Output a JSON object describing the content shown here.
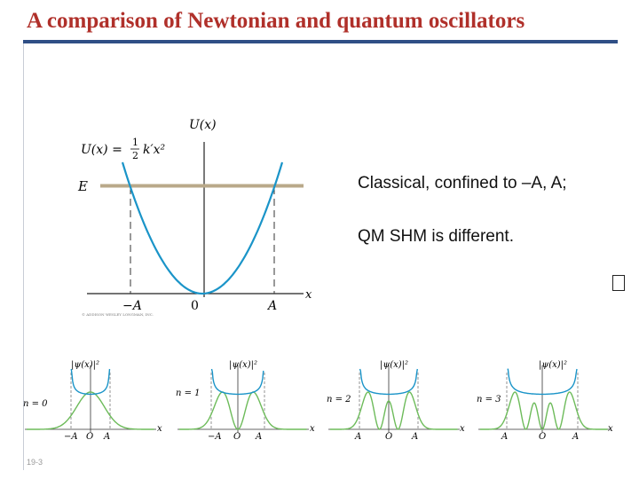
{
  "slide": {
    "title": "A comparison of Newtonian and quantum oscillators",
    "bullets": [
      "Classical, confined to –A, A;",
      "QM SHM is different."
    ],
    "placeholder_glyph": "missing-glyph-icon",
    "slide_number": "19-3"
  },
  "classical_plot": {
    "y_axis_label": "U(x)",
    "potential_label": "U(x) = ",
    "potential_fraction": [
      "1",
      "2"
    ],
    "potential_tail": "k′x²",
    "energy_label": "E",
    "x_axis_label": "x",
    "tick_labels": [
      "−A",
      "0",
      "A"
    ],
    "copyright": "© ADDISON WESLEY LONGMAN, INC.",
    "colors": {
      "parabola": "#1a94c8",
      "energy_line": "#b9a98a",
      "axes": "#222222"
    }
  },
  "quantum_panels": [
    {
      "n_label": "n = 0",
      "psi_label": "|ψ(x)|²",
      "ticks": [
        "−A",
        "O",
        "A"
      ],
      "x_label": "x",
      "n": 0
    },
    {
      "n_label": "n = 1",
      "psi_label": "|ψ(x)|²",
      "ticks": [
        "−A",
        "O",
        "A"
      ],
      "x_label": "x",
      "n": 1
    },
    {
      "n_label": "n = 2",
      "psi_label": "|ψ(x)|²",
      "ticks": [
        "A",
        "O",
        "A"
      ],
      "x_label": "x",
      "n": 2
    },
    {
      "n_label": "n = 3",
      "psi_label": "|ψ(x)|²",
      "ticks": [
        "A",
        "O",
        "A"
      ],
      "x_label": "x",
      "n": 3
    }
  ],
  "colors": {
    "title": "#b0302a",
    "title_rule": "#2f4f86",
    "quantum_curve": "#6dbb5a",
    "classical_curve": "#1a94c8"
  }
}
